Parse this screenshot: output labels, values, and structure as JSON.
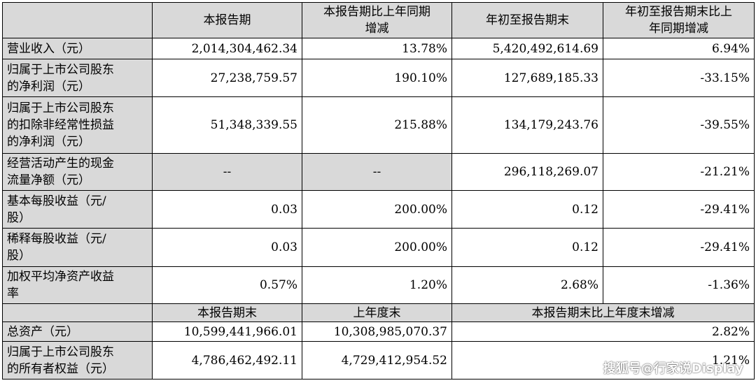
{
  "header": {
    "c1": "本报告期",
    "c2_l1": "本报告期比上年同期",
    "c2_l2": "增减",
    "c3": "年初至报告期末",
    "c4_l1": "年初至报告期末比上",
    "c4_l2": "年同期增减"
  },
  "rows": [
    {
      "label_l1": "营业收入（元）",
      "v1": "2,014,304,462.34",
      "v2": "13.78%",
      "v3": "5,420,492,614.69",
      "v4": "6.94%"
    },
    {
      "label_l1": "归属于上市公司股东",
      "label_l2": "的净利润（元）",
      "v1": "27,238,759.57",
      "v2": "190.10%",
      "v3": "127,689,185.33",
      "v4": "-33.15%"
    },
    {
      "label_l1": "归属于上市公司股东",
      "label_l2": "的扣除非经常性损益",
      "label_l3": "的净利润（元）",
      "v1": "51,348,339.55",
      "v2": "215.88%",
      "v3": "134,179,243.76",
      "v4": "-39.55%"
    },
    {
      "label_l1": "经营活动产生的现金",
      "label_l2": "流量净额（元）",
      "v1": "--",
      "v2": "--",
      "v3": "296,118,269.07",
      "v4": "-21.21%"
    },
    {
      "label_l1": "基本每股收益（元/",
      "label_l2": "股）",
      "v1": "0.03",
      "v2": "200.00%",
      "v3": "0.12",
      "v4": "-29.41%"
    },
    {
      "label_l1": "稀释每股收益（元/",
      "label_l2": "股）",
      "v1": "0.03",
      "v2": "200.00%",
      "v3": "0.12",
      "v4": "-29.41%"
    },
    {
      "label_l1": "加权平均净资产收益",
      "label_l2": "率",
      "v1": "0.57%",
      "v2": "1.20%",
      "v3": "2.68%",
      "v4": "-1.36%"
    }
  ],
  "header2": {
    "c1": "本报告期末",
    "c2": "上年度末",
    "c34": "本报告期末比上年度末增减"
  },
  "rows2": [
    {
      "label_l1": "总资产（元）",
      "v1": "10,599,441,966.01",
      "v2": "10,308,985,070.37",
      "v3": "2.82%"
    },
    {
      "label_l1": "归属于上市公司股东",
      "label_l2": "的所有者权益（元）",
      "v1": "4,786,462,492.11",
      "v2": "4,729,412,954.52",
      "v3": "1.21%"
    }
  ],
  "watermark": "搜狐号@行家说Display"
}
